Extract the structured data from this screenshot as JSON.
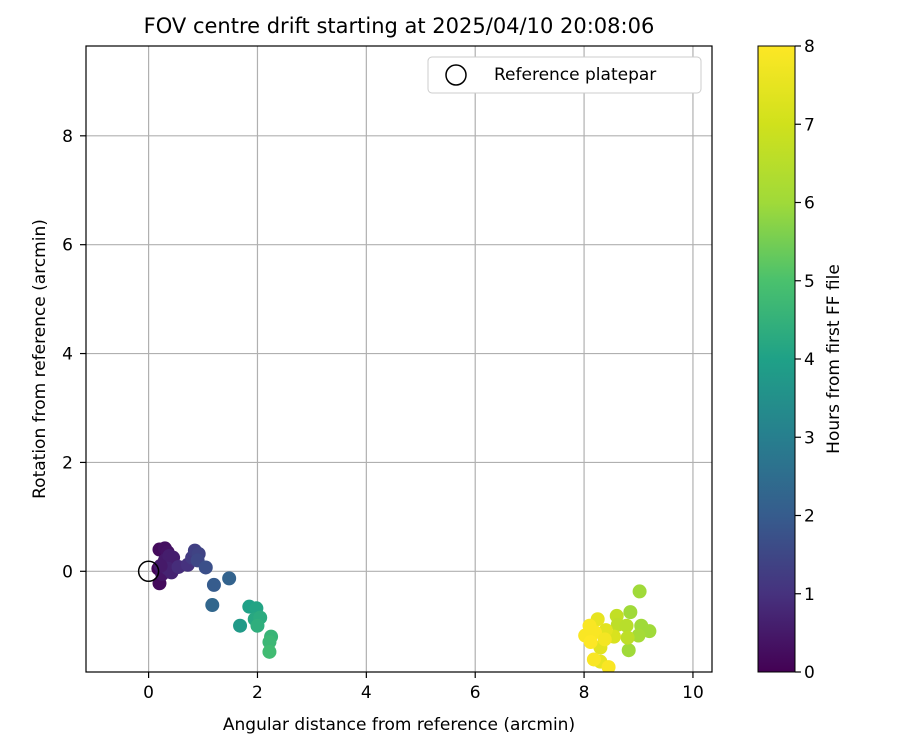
{
  "chart_data": {
    "type": "scatter",
    "title": "FOV centre drift starting at 2025/04/10 20:08:06",
    "xlabel": "Angular distance from reference (arcmin)",
    "ylabel": "Rotation from reference (arcmin)",
    "xlim": [
      -1.15,
      10.35
    ],
    "ylim": [
      -1.85,
      9.65
    ],
    "xticks": [
      0,
      2,
      4,
      6,
      8,
      10
    ],
    "yticks": [
      0,
      2,
      4,
      6,
      8
    ],
    "grid": true,
    "legend": {
      "placement": "top-right",
      "entries": [
        "Reference platepar"
      ]
    },
    "reference_point": {
      "x": 0,
      "y": 0
    },
    "colorbar": {
      "label": "Hours from first FF file",
      "range": [
        0,
        8
      ],
      "ticks": [
        0,
        1,
        2,
        3,
        4,
        5,
        6,
        7,
        8
      ],
      "colormap": "viridis"
    },
    "series": [
      {
        "points": [
          {
            "x": 0.18,
            "y": 0.05,
            "h": 0.1
          },
          {
            "x": 0.2,
            "y": 0.4,
            "h": 0.2
          },
          {
            "x": 0.3,
            "y": 0.42,
            "h": 0.3
          },
          {
            "x": 0.35,
            "y": 0.35,
            "h": 0.35
          },
          {
            "x": 0.2,
            "y": -0.22,
            "h": 0.2
          },
          {
            "x": 0.25,
            "y": -0.05,
            "h": 0.4
          },
          {
            "x": 0.3,
            "y": 0.2,
            "h": 0.5
          },
          {
            "x": 0.38,
            "y": 0.28,
            "h": 0.6
          },
          {
            "x": 0.45,
            "y": 0.25,
            "h": 0.6
          },
          {
            "x": 0.42,
            "y": -0.02,
            "h": 0.7
          },
          {
            "x": 0.35,
            "y": 0.05,
            "h": 0.7
          },
          {
            "x": 0.22,
            "y": 0.1,
            "h": 0.5
          },
          {
            "x": 0.55,
            "y": 0.08,
            "h": 0.9
          },
          {
            "x": 0.72,
            "y": 0.12,
            "h": 1.0
          },
          {
            "x": 0.8,
            "y": 0.25,
            "h": 1.2
          },
          {
            "x": 0.85,
            "y": 0.38,
            "h": 1.3
          },
          {
            "x": 0.92,
            "y": 0.32,
            "h": 1.4
          },
          {
            "x": 0.9,
            "y": 0.2,
            "h": 1.5
          },
          {
            "x": 1.05,
            "y": 0.07,
            "h": 1.7
          },
          {
            "x": 1.2,
            "y": -0.25,
            "h": 2.0
          },
          {
            "x": 1.48,
            "y": -0.13,
            "h": 2.2
          },
          {
            "x": 1.17,
            "y": -0.62,
            "h": 2.3
          },
          {
            "x": 1.68,
            "y": -1.0,
            "h": 3.8
          },
          {
            "x": 1.85,
            "y": -0.65,
            "h": 4.0
          },
          {
            "x": 1.98,
            "y": -0.68,
            "h": 4.1
          },
          {
            "x": 1.95,
            "y": -0.88,
            "h": 4.2
          },
          {
            "x": 2.05,
            "y": -0.85,
            "h": 4.3
          },
          {
            "x": 2.0,
            "y": -1.0,
            "h": 4.4
          },
          {
            "x": 2.25,
            "y": -1.2,
            "h": 4.6
          },
          {
            "x": 2.22,
            "y": -1.3,
            "h": 4.7
          },
          {
            "x": 2.22,
            "y": -1.48,
            "h": 4.8
          },
          {
            "x": 9.02,
            "y": -0.37,
            "h": 6.0
          },
          {
            "x": 8.85,
            "y": -0.75,
            "h": 6.0
          },
          {
            "x": 9.05,
            "y": -1.0,
            "h": 6.0
          },
          {
            "x": 9.2,
            "y": -1.1,
            "h": 6.0
          },
          {
            "x": 9.0,
            "y": -1.18,
            "h": 6.1
          },
          {
            "x": 8.82,
            "y": -1.45,
            "h": 6.0
          },
          {
            "x": 8.6,
            "y": -0.82,
            "h": 6.7
          },
          {
            "x": 8.62,
            "y": -0.98,
            "h": 6.6
          },
          {
            "x": 8.78,
            "y": -1.0,
            "h": 6.5
          },
          {
            "x": 8.8,
            "y": -1.22,
            "h": 6.6
          },
          {
            "x": 8.55,
            "y": -1.2,
            "h": 7.2
          },
          {
            "x": 8.4,
            "y": -1.08,
            "h": 7.4
          },
          {
            "x": 8.25,
            "y": -0.88,
            "h": 7.5
          },
          {
            "x": 8.3,
            "y": -1.4,
            "h": 7.4
          },
          {
            "x": 8.3,
            "y": -1.66,
            "h": 7.5
          },
          {
            "x": 8.1,
            "y": -1.0,
            "h": 7.9
          },
          {
            "x": 8.2,
            "y": -1.12,
            "h": 7.9
          },
          {
            "x": 8.02,
            "y": -1.18,
            "h": 7.9
          },
          {
            "x": 8.12,
            "y": -1.3,
            "h": 8.0
          },
          {
            "x": 8.38,
            "y": -1.25,
            "h": 7.8
          },
          {
            "x": 8.18,
            "y": -1.62,
            "h": 7.9
          },
          {
            "x": 8.45,
            "y": -1.76,
            "h": 7.9
          }
        ]
      }
    ]
  }
}
